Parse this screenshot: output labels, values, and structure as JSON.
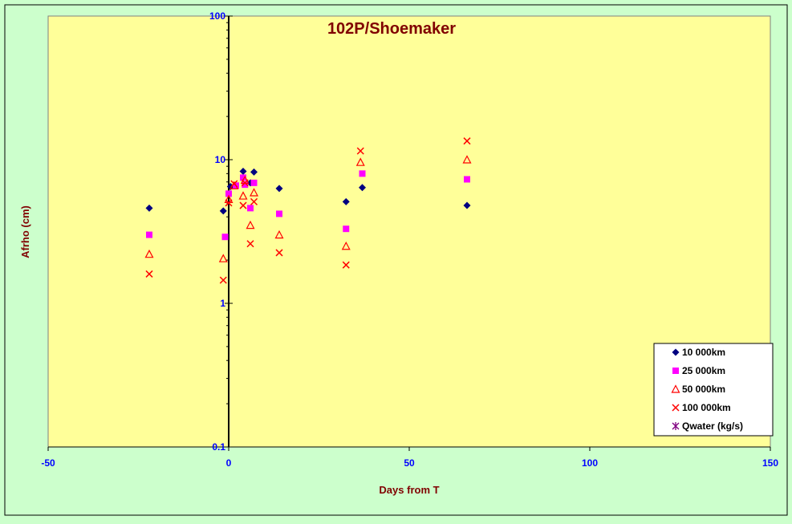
{
  "chart_data": {
    "type": "scatter",
    "title": "102P/Shoemaker",
    "xlabel": "Days from  T",
    "ylabel": "Afrho (cm)",
    "xlim": [
      -50,
      150
    ],
    "ylim": [
      0.1,
      100
    ],
    "yscale": "log",
    "x_ticks": [
      "-50",
      "0",
      "50",
      "100",
      "150"
    ],
    "y_ticks": [
      "0.1",
      "1",
      "10",
      "100"
    ],
    "legend_position": "bottom-right",
    "colors": {
      "background": "#ccffcc",
      "plot_area": "#ffff99",
      "tick_labels": "#0000ff",
      "title": "#800000",
      "axis_titles": "#800000"
    },
    "series": [
      {
        "name": "10 000km",
        "marker": "diamond",
        "color": "#000080",
        "points": [
          [
            -22,
            4.6
          ],
          [
            -1.5,
            4.4
          ],
          [
            0.5,
            6.5
          ],
          [
            4,
            8.3
          ],
          [
            6,
            6.9
          ],
          [
            7,
            8.2
          ],
          [
            14,
            6.3
          ],
          [
            32.5,
            5.1
          ],
          [
            37,
            6.4
          ],
          [
            66,
            4.8
          ]
        ]
      },
      {
        "name": "25 000km",
        "marker": "square",
        "color": "#ff00ff",
        "points": [
          [
            -22,
            3.0
          ],
          [
            -1,
            2.9
          ],
          [
            0,
            5.8
          ],
          [
            2,
            6.6
          ],
          [
            4,
            7.5
          ],
          [
            4.5,
            6.7
          ],
          [
            6,
            4.6
          ],
          [
            7,
            6.9
          ],
          [
            14,
            4.2
          ],
          [
            32.5,
            3.3
          ],
          [
            37,
            8.0
          ],
          [
            66,
            7.3
          ]
        ]
      },
      {
        "name": "50 000km",
        "marker": "triangle",
        "color": "#ff0000",
        "points": [
          [
            -22,
            2.2
          ],
          [
            -1.5,
            2.05
          ],
          [
            0,
            5.3
          ],
          [
            1.5,
            6.6
          ],
          [
            4,
            5.6
          ],
          [
            4.5,
            7.2
          ],
          [
            6,
            3.5
          ],
          [
            7,
            5.9
          ],
          [
            14,
            3.0
          ],
          [
            32.5,
            2.5
          ],
          [
            36.5,
            9.6
          ],
          [
            66,
            10.0
          ]
        ]
      },
      {
        "name": "100 000km",
        "marker": "x",
        "color": "#ff0000",
        "points": [
          [
            -22,
            1.6
          ],
          [
            -1.5,
            1.45
          ],
          [
            0,
            5.0
          ],
          [
            1.5,
            6.8
          ],
          [
            4,
            4.8
          ],
          [
            4.5,
            6.9
          ],
          [
            6,
            2.6
          ],
          [
            7,
            5.1
          ],
          [
            14,
            2.25
          ],
          [
            32.5,
            1.85
          ],
          [
            36.5,
            11.5
          ],
          [
            66,
            13.5
          ]
        ]
      },
      {
        "name": "Qwater (kg/s)",
        "marker": "star",
        "color": "#800080",
        "points": []
      }
    ]
  }
}
